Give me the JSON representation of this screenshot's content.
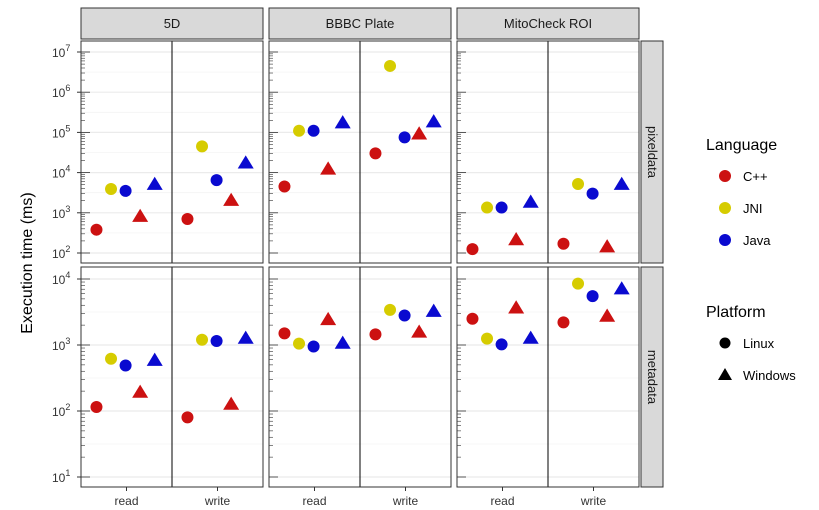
{
  "chart_data": {
    "type": "scatter",
    "ylabel": "Execution time (ms)",
    "yscale": "log10",
    "x_categories": [
      "read",
      "write"
    ],
    "col_facets": [
      "5D",
      "BBBC Plate",
      "MitoCheck ROI"
    ],
    "row_facets": [
      {
        "name": "pixeldata",
        "ylim": [
          100,
          10000000
        ],
        "tick_labels": [
          "10^2",
          "10^3",
          "10^4",
          "10^5",
          "10^6",
          "10^7"
        ],
        "tick_values": [
          100,
          1000,
          10000,
          100000,
          1000000,
          10000000
        ]
      },
      {
        "name": "metadata",
        "ylim": [
          10,
          10000
        ],
        "tick_labels": [
          "10^1",
          "10^2",
          "10^3",
          "10^4"
        ],
        "tick_values": [
          10,
          100,
          1000,
          10000
        ]
      }
    ],
    "legend_language": {
      "title": "Language",
      "entries": [
        {
          "label": "C++",
          "color": "#cc1111"
        },
        {
          "label": "JNI",
          "color": "#d6cc00"
        },
        {
          "label": "Java",
          "color": "#0a0ad0"
        }
      ]
    },
    "legend_platform": {
      "title": "Platform",
      "entries": [
        {
          "label": "Linux",
          "shape": "circle"
        },
        {
          "label": "Windows",
          "shape": "triangle"
        }
      ]
    },
    "grid": true,
    "points": [
      {
        "col": "5D",
        "row": "pixeldata",
        "x": "read",
        "language": "C++",
        "platform": "Linux",
        "y": 380
      },
      {
        "col": "5D",
        "row": "pixeldata",
        "x": "read",
        "language": "JNI",
        "platform": "Linux",
        "y": 3900
      },
      {
        "col": "5D",
        "row": "pixeldata",
        "x": "read",
        "language": "Java",
        "platform": "Linux",
        "y": 3500
      },
      {
        "col": "5D",
        "row": "pixeldata",
        "x": "read",
        "language": "C++",
        "platform": "Windows",
        "y": 800
      },
      {
        "col": "5D",
        "row": "pixeldata",
        "x": "read",
        "language": "Java",
        "platform": "Windows",
        "y": 5000
      },
      {
        "col": "5D",
        "row": "pixeldata",
        "x": "write",
        "language": "C++",
        "platform": "Linux",
        "y": 700
      },
      {
        "col": "5D",
        "row": "pixeldata",
        "x": "write",
        "language": "JNI",
        "platform": "Linux",
        "y": 45000
      },
      {
        "col": "5D",
        "row": "pixeldata",
        "x": "write",
        "language": "Java",
        "platform": "Linux",
        "y": 6500
      },
      {
        "col": "5D",
        "row": "pixeldata",
        "x": "write",
        "language": "C++",
        "platform": "Windows",
        "y": 2000
      },
      {
        "col": "5D",
        "row": "pixeldata",
        "x": "write",
        "language": "Java",
        "platform": "Windows",
        "y": 17000
      },
      {
        "col": "BBBC Plate",
        "row": "pixeldata",
        "x": "read",
        "language": "C++",
        "platform": "Linux",
        "y": 4500
      },
      {
        "col": "BBBC Plate",
        "row": "pixeldata",
        "x": "read",
        "language": "JNI",
        "platform": "Linux",
        "y": 110000
      },
      {
        "col": "BBBC Plate",
        "row": "pixeldata",
        "x": "read",
        "language": "Java",
        "platform": "Linux",
        "y": 110000
      },
      {
        "col": "BBBC Plate",
        "row": "pixeldata",
        "x": "read",
        "language": "C++",
        "platform": "Windows",
        "y": 12000
      },
      {
        "col": "BBBC Plate",
        "row": "pixeldata",
        "x": "read",
        "language": "Java",
        "platform": "Windows",
        "y": 170000
      },
      {
        "col": "BBBC Plate",
        "row": "pixeldata",
        "x": "write",
        "language": "C++",
        "platform": "Linux",
        "y": 30000
      },
      {
        "col": "BBBC Plate",
        "row": "pixeldata",
        "x": "write",
        "language": "JNI",
        "platform": "Linux",
        "y": 4500000
      },
      {
        "col": "BBBC Plate",
        "row": "pixeldata",
        "x": "write",
        "language": "Java",
        "platform": "Linux",
        "y": 75000
      },
      {
        "col": "BBBC Plate",
        "row": "pixeldata",
        "x": "write",
        "language": "C++",
        "platform": "Windows",
        "y": 90000
      },
      {
        "col": "BBBC Plate",
        "row": "pixeldata",
        "x": "write",
        "language": "Java",
        "platform": "Windows",
        "y": 180000
      },
      {
        "col": "MitoCheck ROI",
        "row": "pixeldata",
        "x": "read",
        "language": "C++",
        "platform": "Linux",
        "y": 125
      },
      {
        "col": "MitoCheck ROI",
        "row": "pixeldata",
        "x": "read",
        "language": "JNI",
        "platform": "Linux",
        "y": 1350
      },
      {
        "col": "MitoCheck ROI",
        "row": "pixeldata",
        "x": "read",
        "language": "Java",
        "platform": "Linux",
        "y": 1350
      },
      {
        "col": "MitoCheck ROI",
        "row": "pixeldata",
        "x": "read",
        "language": "C++",
        "platform": "Windows",
        "y": 210
      },
      {
        "col": "MitoCheck ROI",
        "row": "pixeldata",
        "x": "read",
        "language": "Java",
        "platform": "Windows",
        "y": 1800
      },
      {
        "col": "MitoCheck ROI",
        "row": "pixeldata",
        "x": "write",
        "language": "C++",
        "platform": "Linux",
        "y": 170
      },
      {
        "col": "MitoCheck ROI",
        "row": "pixeldata",
        "x": "write",
        "language": "JNI",
        "platform": "Linux",
        "y": 5200
      },
      {
        "col": "MitoCheck ROI",
        "row": "pixeldata",
        "x": "write",
        "language": "Java",
        "platform": "Linux",
        "y": 3000
      },
      {
        "col": "MitoCheck ROI",
        "row": "pixeldata",
        "x": "write",
        "language": "C++",
        "platform": "Windows",
        "y": 140
      },
      {
        "col": "MitoCheck ROI",
        "row": "pixeldata",
        "x": "write",
        "language": "Java",
        "platform": "Windows",
        "y": 5000
      },
      {
        "col": "5D",
        "row": "metadata",
        "x": "read",
        "language": "C++",
        "platform": "Linux",
        "y": 115
      },
      {
        "col": "5D",
        "row": "metadata",
        "x": "read",
        "language": "JNI",
        "platform": "Linux",
        "y": 620
      },
      {
        "col": "5D",
        "row": "metadata",
        "x": "read",
        "language": "Java",
        "platform": "Linux",
        "y": 490
      },
      {
        "col": "5D",
        "row": "metadata",
        "x": "read",
        "language": "C++",
        "platform": "Windows",
        "y": 190
      },
      {
        "col": "5D",
        "row": "metadata",
        "x": "read",
        "language": "Java",
        "platform": "Windows",
        "y": 580
      },
      {
        "col": "5D",
        "row": "metadata",
        "x": "write",
        "language": "C++",
        "platform": "Linux",
        "y": 80
      },
      {
        "col": "5D",
        "row": "metadata",
        "x": "write",
        "language": "JNI",
        "platform": "Linux",
        "y": 1200
      },
      {
        "col": "5D",
        "row": "metadata",
        "x": "write",
        "language": "Java",
        "platform": "Linux",
        "y": 1150
      },
      {
        "col": "5D",
        "row": "metadata",
        "x": "write",
        "language": "C++",
        "platform": "Windows",
        "y": 125
      },
      {
        "col": "5D",
        "row": "metadata",
        "x": "write",
        "language": "Java",
        "platform": "Windows",
        "y": 1250
      },
      {
        "col": "BBBC Plate",
        "row": "metadata",
        "x": "read",
        "language": "C++",
        "platform": "Linux",
        "y": 1500
      },
      {
        "col": "BBBC Plate",
        "row": "metadata",
        "x": "read",
        "language": "JNI",
        "platform": "Linux",
        "y": 1050
      },
      {
        "col": "BBBC Plate",
        "row": "metadata",
        "x": "read",
        "language": "Java",
        "platform": "Linux",
        "y": 950
      },
      {
        "col": "BBBC Plate",
        "row": "metadata",
        "x": "read",
        "language": "C++",
        "platform": "Windows",
        "y": 2400
      },
      {
        "col": "BBBC Plate",
        "row": "metadata",
        "x": "read",
        "language": "Java",
        "platform": "Windows",
        "y": 1050
      },
      {
        "col": "BBBC Plate",
        "row": "metadata",
        "x": "write",
        "language": "C++",
        "platform": "Linux",
        "y": 1450
      },
      {
        "col": "BBBC Plate",
        "row": "metadata",
        "x": "write",
        "language": "JNI",
        "platform": "Linux",
        "y": 3400
      },
      {
        "col": "BBBC Plate",
        "row": "metadata",
        "x": "write",
        "language": "Java",
        "platform": "Linux",
        "y": 2800
      },
      {
        "col": "BBBC Plate",
        "row": "metadata",
        "x": "write",
        "language": "C++",
        "platform": "Windows",
        "y": 1550
      },
      {
        "col": "BBBC Plate",
        "row": "metadata",
        "x": "write",
        "language": "Java",
        "platform": "Windows",
        "y": 3200
      },
      {
        "col": "MitoCheck ROI",
        "row": "metadata",
        "x": "read",
        "language": "C++",
        "platform": "Linux",
        "y": 2500
      },
      {
        "col": "MitoCheck ROI",
        "row": "metadata",
        "x": "read",
        "language": "JNI",
        "platform": "Linux",
        "y": 1250
      },
      {
        "col": "MitoCheck ROI",
        "row": "metadata",
        "x": "read",
        "language": "Java",
        "platform": "Linux",
        "y": 1020
      },
      {
        "col": "MitoCheck ROI",
        "row": "metadata",
        "x": "read",
        "language": "C++",
        "platform": "Windows",
        "y": 3600
      },
      {
        "col": "MitoCheck ROI",
        "row": "metadata",
        "x": "read",
        "language": "Java",
        "platform": "Windows",
        "y": 1250
      },
      {
        "col": "MitoCheck ROI",
        "row": "metadata",
        "x": "write",
        "language": "C++",
        "platform": "Linux",
        "y": 2200
      },
      {
        "col": "MitoCheck ROI",
        "row": "metadata",
        "x": "write",
        "language": "JNI",
        "platform": "Linux",
        "y": 8500
      },
      {
        "col": "MitoCheck ROI",
        "row": "metadata",
        "x": "write",
        "language": "Java",
        "platform": "Linux",
        "y": 5500
      },
      {
        "col": "MitoCheck ROI",
        "row": "metadata",
        "x": "write",
        "language": "C++",
        "platform": "Windows",
        "y": 2700
      },
      {
        "col": "MitoCheck ROI",
        "row": "metadata",
        "x": "write",
        "language": "Java",
        "platform": "Windows",
        "y": 7000
      }
    ]
  }
}
